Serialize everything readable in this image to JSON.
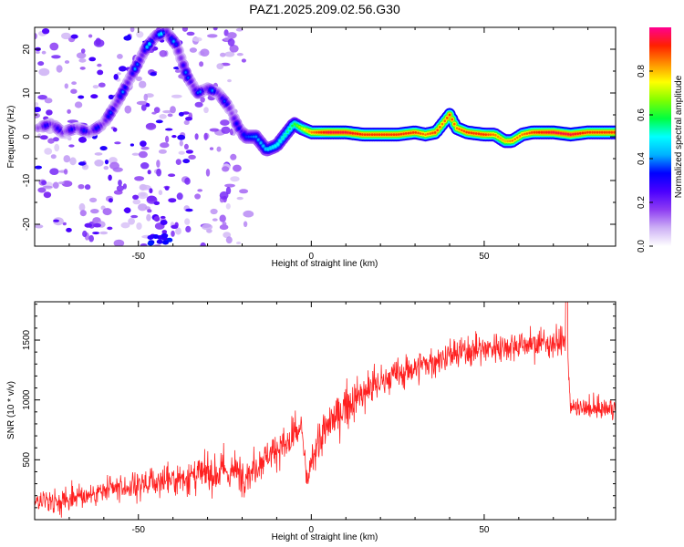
{
  "title": "PAZ1.2025.209.02.56.G30",
  "chart_data": [
    {
      "type": "heatmap",
      "xlabel": "Height of straight line (km)",
      "ylabel": "Frequency (Hz)",
      "xlim": [
        -80,
        88
      ],
      "ylim": [
        -25,
        25
      ],
      "xticks": [
        -50,
        0,
        50
      ],
      "yticks": [
        -20,
        -10,
        0,
        10,
        20
      ],
      "colorbar": {
        "label": "Normalized spectral amplitude",
        "range": [
          0,
          1
        ],
        "ticks": [
          0.0,
          0.2,
          0.4,
          0.6,
          0.8
        ],
        "colors": [
          "#ffffff",
          "#cdb0f5",
          "#8e3df2",
          "#4b00ff",
          "#0000ff",
          "#00b0ff",
          "#00ffff",
          "#00ff40",
          "#80ff00",
          "#ffff00",
          "#ff9000",
          "#ff2000",
          "#ff0090"
        ]
      },
      "ridge": {
        "x": [
          -79,
          -75,
          -72,
          -68,
          -64,
          -60,
          -56,
          -52,
          -48,
          -45,
          -42,
          -39,
          -36,
          -33,
          -30,
          -27,
          -24,
          -21,
          -19,
          -16,
          -13,
          -10,
          -7,
          -5,
          -3,
          0,
          5,
          10,
          15,
          20,
          25,
          30,
          33,
          36,
          38,
          40,
          42,
          45,
          50,
          53,
          56,
          58,
          61,
          64,
          70,
          75,
          80,
          88
        ],
        "y": [
          2,
          3,
          1,
          2,
          1,
          3,
          8,
          14,
          20,
          23,
          24,
          21,
          14,
          10,
          11,
          10,
          7,
          2,
          0,
          0,
          -3,
          -2,
          1,
          3,
          2,
          1,
          1,
          1,
          0.5,
          0.5,
          0.5,
          1,
          0.5,
          1,
          3,
          5,
          2,
          1,
          0.5,
          0.5,
          -1,
          -1,
          0.5,
          1,
          1,
          0.5,
          1,
          1
        ],
        "amp": [
          0.25,
          0.3,
          0.25,
          0.3,
          0.3,
          0.3,
          0.35,
          0.35,
          0.4,
          0.45,
          0.4,
          0.35,
          0.35,
          0.35,
          0.35,
          0.35,
          0.3,
          0.3,
          0.35,
          0.4,
          0.45,
          0.5,
          0.55,
          0.6,
          0.7,
          0.85,
          0.95,
          0.95,
          0.9,
          0.9,
          0.9,
          0.9,
          0.85,
          0.9,
          0.85,
          0.9,
          0.85,
          0.9,
          0.9,
          0.85,
          0.8,
          0.85,
          0.85,
          0.9,
          0.95,
          0.95,
          0.9,
          0.9
        ]
      }
    },
    {
      "type": "line",
      "xlabel": "Height of straight line (km)",
      "ylabel": "SNR (10 * v/v)",
      "xlim": [
        -80,
        88
      ],
      "ylim": [
        0,
        1820
      ],
      "xticks": [
        -50,
        0,
        50
      ],
      "yticks": [
        500,
        1000,
        1500
      ],
      "series": [
        {
          "color": "#ff2020",
          "trend_x": [
            -80,
            -70,
            -60,
            -50,
            -40,
            -30,
            -22,
            -18,
            -12,
            -5,
            -3,
            -1,
            0,
            5,
            10,
            20,
            30,
            40,
            50,
            60,
            70,
            74,
            75,
            80,
            88
          ],
          "trend_mean": [
            150,
            180,
            230,
            290,
            340,
            380,
            400,
            380,
            560,
            660,
            790,
            260,
            520,
            790,
            950,
            1150,
            1270,
            1370,
            1430,
            1460,
            1480,
            1490,
            930,
            920,
            930
          ],
          "trend_spread": [
            130,
            130,
            140,
            160,
            180,
            200,
            220,
            180,
            180,
            200,
            150,
            160,
            200,
            220,
            220,
            190,
            180,
            170,
            160,
            150,
            150,
            150,
            110,
            100,
            100
          ]
        }
      ]
    }
  ]
}
